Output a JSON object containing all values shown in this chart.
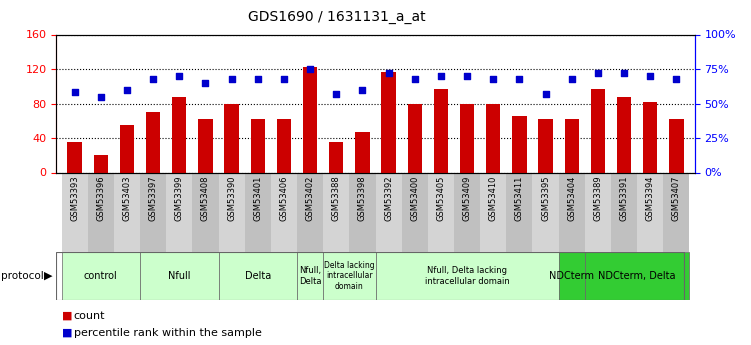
{
  "title": "GDS1690 / 1631131_a_at",
  "samples": [
    "GSM53393",
    "GSM53396",
    "GSM53403",
    "GSM53397",
    "GSM53399",
    "GSM53408",
    "GSM53390",
    "GSM53401",
    "GSM53406",
    "GSM53402",
    "GSM53388",
    "GSM53398",
    "GSM53392",
    "GSM53400",
    "GSM53405",
    "GSM53409",
    "GSM53410",
    "GSM53411",
    "GSM53395",
    "GSM53404",
    "GSM53389",
    "GSM53391",
    "GSM53394",
    "GSM53407"
  ],
  "counts": [
    35,
    20,
    55,
    70,
    88,
    62,
    80,
    62,
    62,
    122,
    35,
    47,
    116,
    80,
    97,
    80,
    80,
    65,
    62,
    62,
    97,
    88,
    82,
    62
  ],
  "percentiles": [
    58,
    55,
    60,
    68,
    70,
    65,
    68,
    68,
    68,
    75,
    57,
    60,
    72,
    68,
    70,
    70,
    68,
    68,
    57,
    68,
    72,
    72,
    70,
    68
  ],
  "groups": [
    {
      "label": "control",
      "start": 0,
      "end": 3,
      "color": "#ccffcc",
      "dark": false
    },
    {
      "label": "Nfull",
      "start": 3,
      "end": 6,
      "color": "#ccffcc",
      "dark": false
    },
    {
      "label": "Delta",
      "start": 6,
      "end": 9,
      "color": "#ccffcc",
      "dark": false
    },
    {
      "label": "Nfull,\nDelta",
      "start": 9,
      "end": 10,
      "color": "#ccffcc",
      "dark": false
    },
    {
      "label": "Delta lacking\nintracellular\ndomain",
      "start": 10,
      "end": 12,
      "color": "#ccffcc",
      "dark": false
    },
    {
      "label": "Nfull, Delta lacking\nintracellular domain",
      "start": 12,
      "end": 19,
      "color": "#ccffcc",
      "dark": false
    },
    {
      "label": "NDCterm",
      "start": 19,
      "end": 20,
      "color": "#33cc33",
      "dark": true
    },
    {
      "label": "NDCterm, Delta",
      "start": 20,
      "end": 24,
      "color": "#33cc33",
      "dark": true
    }
  ],
  "ylim_left": [
    0,
    160
  ],
  "ylim_right": [
    0,
    100
  ],
  "yticks_left": [
    0,
    40,
    80,
    120,
    160
  ],
  "yticks_right": [
    0,
    25,
    50,
    75,
    100
  ],
  "ytick_labels_left": [
    "0",
    "40",
    "80",
    "120",
    "160"
  ],
  "ytick_labels_right": [
    "0%",
    "25%",
    "50%",
    "75%",
    "100%"
  ],
  "bar_color": "#cc0000",
  "dot_color": "#0000cc",
  "plot_bg": "#ffffff"
}
